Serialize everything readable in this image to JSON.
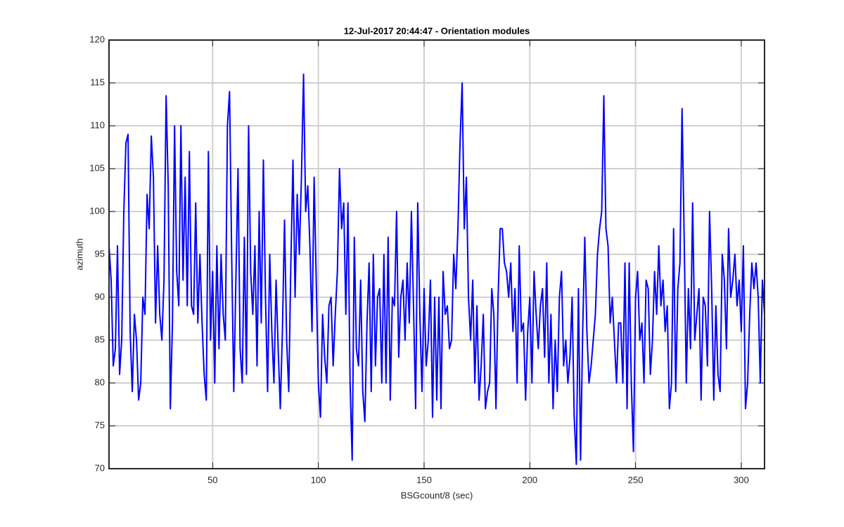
{
  "chart_data": {
    "type": "line",
    "title": "12-Jul-2017 20:44:47 - Orientation modules",
    "xlabel": "BSGcount/8 (sec)",
    "ylabel": "azimuth",
    "xlim": [
      1,
      311
    ],
    "ylim": [
      70,
      120
    ],
    "xticks": [
      50,
      100,
      150,
      200,
      250,
      300
    ],
    "yticks": [
      70,
      75,
      80,
      85,
      90,
      95,
      100,
      105,
      110,
      115,
      120
    ],
    "grid": true,
    "x": [
      1,
      2,
      3,
      4,
      5,
      6,
      7,
      8,
      9,
      10,
      11,
      12,
      13,
      14,
      15,
      16,
      17,
      18,
      19,
      20,
      21,
      22,
      23,
      24,
      25,
      26,
      27,
      28,
      29,
      30,
      31,
      32,
      33,
      34,
      35,
      36,
      37,
      38,
      39,
      40,
      41,
      42,
      43,
      44,
      45,
      46,
      47,
      48,
      49,
      50,
      51,
      52,
      53,
      54,
      55,
      56,
      57,
      58,
      59,
      60,
      61,
      62,
      63,
      64,
      65,
      66,
      67,
      68,
      69,
      70,
      71,
      72,
      73,
      74,
      75,
      76,
      77,
      78,
      79,
      80,
      81,
      82,
      83,
      84,
      85,
      86,
      87,
      88,
      89,
      90,
      91,
      92,
      93,
      94,
      95,
      96,
      97,
      98,
      99,
      100,
      101,
      102,
      103,
      104,
      105,
      106,
      107,
      108,
      109,
      110,
      111,
      112,
      113,
      114,
      115,
      116,
      117,
      118,
      119,
      120,
      121,
      122,
      123,
      124,
      125,
      126,
      127,
      128,
      129,
      130,
      131,
      132,
      133,
      134,
      135,
      136,
      137,
      138,
      139,
      140,
      141,
      142,
      143,
      144,
      145,
      146,
      147,
      148,
      149,
      150,
      151,
      152,
      153,
      154,
      155,
      156,
      157,
      158,
      159,
      160,
      161,
      162,
      163,
      164,
      165,
      166,
      167,
      168,
      169,
      170,
      171,
      172,
      173,
      174,
      175,
      176,
      177,
      178,
      179,
      180,
      181,
      182,
      183,
      184,
      185,
      186,
      187,
      188,
      189,
      190,
      191,
      192,
      193,
      194,
      195,
      196,
      197,
      198,
      199,
      200,
      201,
      202,
      203,
      204,
      205,
      206,
      207,
      208,
      209,
      210,
      211,
      212,
      213,
      214,
      215,
      216,
      217,
      218,
      219,
      220,
      221,
      222,
      223,
      224,
      225,
      226,
      227,
      228,
      229,
      230,
      231,
      232,
      233,
      234,
      235,
      236,
      237,
      238,
      239,
      240,
      241,
      242,
      243,
      244,
      245,
      246,
      247,
      248,
      249,
      250,
      251,
      252,
      253,
      254,
      255,
      256,
      257,
      258,
      259,
      260,
      261,
      262,
      263,
      264,
      265,
      266,
      267,
      268,
      269,
      270,
      271,
      272,
      273,
      274,
      275,
      276,
      277,
      278,
      279,
      280,
      281,
      282,
      283,
      284,
      285,
      286,
      287,
      288,
      289,
      290,
      291,
      292,
      293,
      294,
      295,
      296,
      297,
      298,
      299,
      300,
      301,
      302,
      303,
      304,
      305,
      306,
      307,
      308,
      309,
      310,
      311
    ],
    "series": [
      {
        "color": "#0000ff",
        "values": [
          96,
          92,
          82,
          84,
          96,
          81,
          85,
          100,
          108,
          109,
          86,
          79,
          88,
          85,
          78,
          80,
          90,
          88,
          102,
          98,
          108.8,
          104,
          87,
          96,
          88,
          85,
          92,
          113.5,
          103,
          77,
          87,
          110,
          93,
          89,
          110,
          92,
          104,
          89,
          107,
          89,
          88,
          101,
          87,
          95,
          87,
          81,
          78,
          107,
          85,
          93,
          80,
          96,
          84,
          95,
          88,
          85,
          110,
          114,
          95,
          79,
          92,
          105,
          84,
          80,
          97,
          81,
          110,
          93,
          88,
          96,
          82,
          100,
          87,
          106,
          90,
          79,
          95,
          86,
          80,
          92,
          84,
          77,
          86,
          99,
          85,
          79,
          94,
          106,
          90,
          102,
          95,
          104,
          116,
          100,
          103,
          96,
          86,
          104,
          92,
          80,
          76,
          88,
          83,
          80,
          89,
          90,
          82,
          88,
          93,
          105,
          98,
          101,
          88,
          101,
          80,
          71,
          97,
          84,
          82,
          92,
          79,
          75.5,
          87,
          94,
          79,
          95,
          82,
          90,
          91,
          80,
          95,
          80,
          97,
          78,
          90,
          89,
          100,
          83,
          90,
          92,
          85,
          94,
          87,
          100,
          89,
          77,
          101,
          88,
          79,
          91,
          82,
          85,
          92,
          76,
          90,
          78,
          90,
          77,
          93,
          88,
          89,
          84,
          85,
          95,
          91,
          98,
          108,
          115,
          98,
          104,
          90,
          85,
          92,
          80,
          89,
          78,
          82,
          88,
          77,
          79,
          80,
          91,
          88,
          77,
          90,
          98,
          98,
          94,
          93,
          90,
          94,
          86,
          91,
          80,
          96,
          86,
          87,
          78,
          86,
          90,
          80,
          93,
          88,
          84,
          89,
          91,
          83,
          94,
          80,
          88,
          77,
          85,
          79,
          90,
          93,
          82,
          85,
          80,
          83,
          90,
          76,
          70.5,
          91,
          71,
          86,
          97,
          86,
          80,
          82,
          85,
          88,
          95,
          98,
          100,
          113.5,
          98,
          96,
          87,
          90,
          85,
          80,
          87,
          87,
          80,
          94,
          77,
          94,
          80,
          72,
          90,
          93,
          85,
          87,
          80,
          92,
          91,
          81,
          85,
          93,
          88,
          96,
          89,
          92,
          86,
          89,
          77,
          80,
          98,
          79,
          91,
          94,
          112,
          97,
          80,
          91,
          84,
          101,
          85,
          88,
          91,
          78,
          90,
          89,
          82,
          100,
          91,
          78,
          89,
          81,
          79,
          95,
          92,
          84,
          98,
          90,
          92,
          95,
          89,
          92,
          86,
          96,
          77,
          80,
          88,
          94,
          91,
          94,
          90,
          80,
          92,
          88
        ]
      }
    ]
  }
}
